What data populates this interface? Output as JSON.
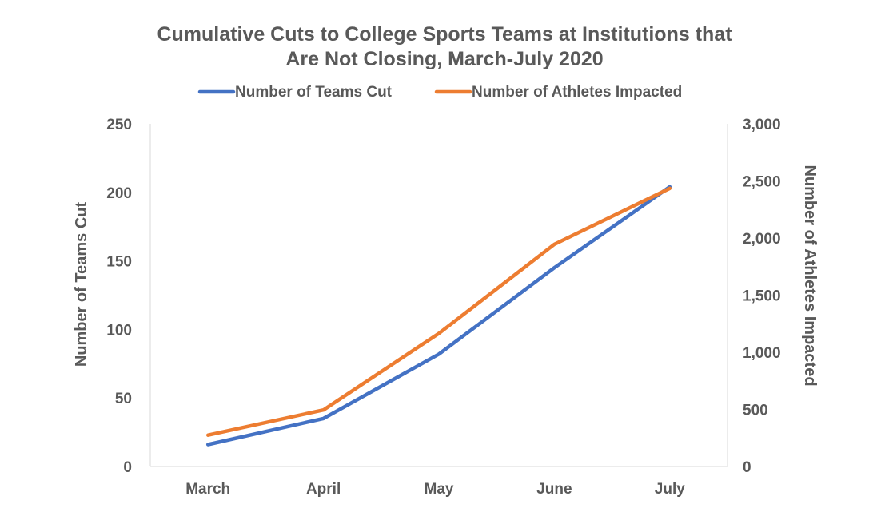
{
  "chart_data": {
    "type": "line",
    "title_lines": [
      "Cumulative Cuts to College Sports Teams at Institutions that",
      "Are Not Closing, March-July 2020"
    ],
    "categories": [
      "March",
      "April",
      "May",
      "June",
      "July"
    ],
    "series": [
      {
        "name": "Number of Teams Cut",
        "axis": "left",
        "color": "#4472C4",
        "values": [
          16,
          35,
          82,
          145,
          204
        ]
      },
      {
        "name": "Number of Athletes Impacted",
        "axis": "right",
        "color": "#ED7D31",
        "values": [
          275,
          495,
          1165,
          1945,
          2435
        ]
      }
    ],
    "y_left": {
      "label": "Number of Teams Cut",
      "range": [
        0,
        250
      ],
      "ticks": [
        0,
        50,
        100,
        150,
        200,
        250
      ],
      "tick_labels": [
        "0",
        "50",
        "100",
        "150",
        "200",
        "250"
      ]
    },
    "y_right": {
      "label": "Number of Athletes Impacted",
      "range": [
        0,
        3000
      ],
      "ticks": [
        0,
        500,
        1000,
        1500,
        2000,
        2500,
        3000
      ],
      "tick_labels": [
        "0",
        "500",
        "1,000",
        "1,500",
        "2,000",
        "2,500",
        "3,000"
      ]
    },
    "xlabel": "",
    "grid": false,
    "legend_position": "top-center",
    "axis_color": "#d9d9d9",
    "text_color": "#595959"
  }
}
